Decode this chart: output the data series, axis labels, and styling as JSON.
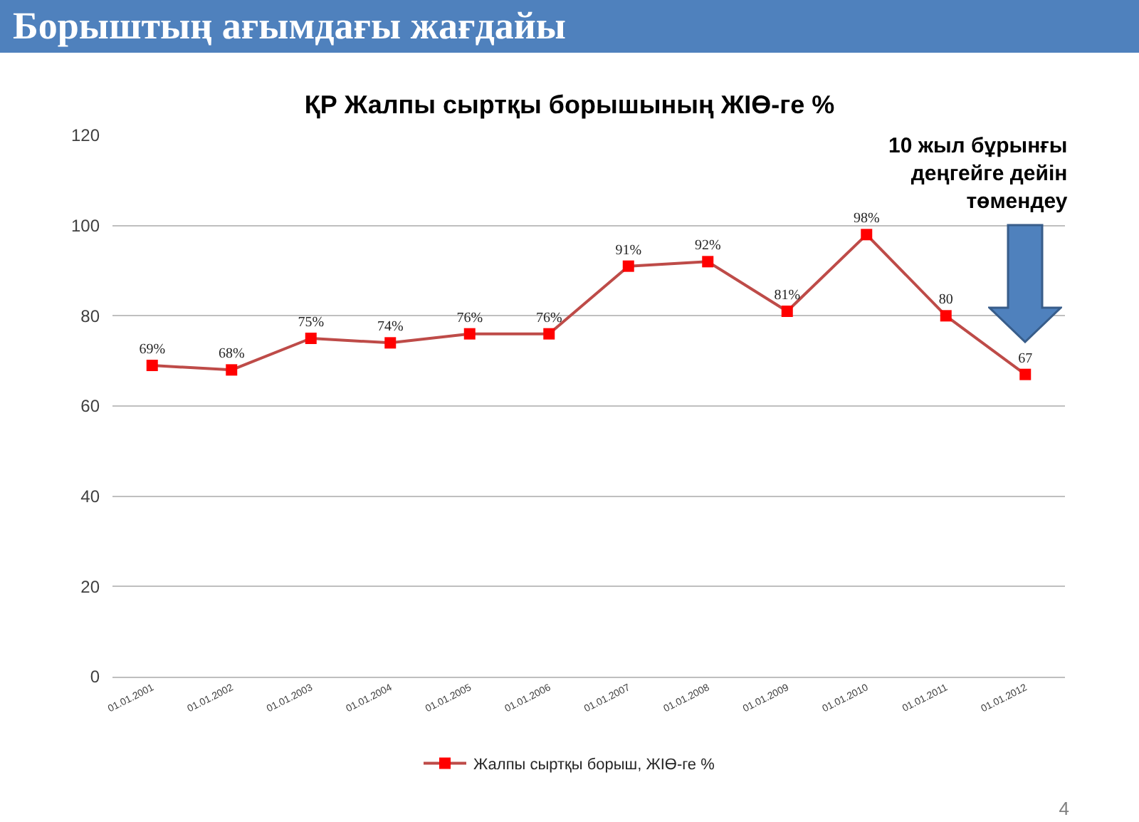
{
  "chart_data": {
    "type": "line",
    "title": "Борыштың ағымдағы жағдайы",
    "subtitle": "ҚР Жалпы сыртқы борышының ЖІӨ-ге %",
    "categories": [
      "01.01.2001",
      "01.01.2002",
      "01.01.2003",
      "01.01.2004",
      "01.01.2005",
      "01.01.2006",
      "01.01.2007",
      "01.01.2008",
      "01.01.2009",
      "01.01.2010",
      "01.01.2011",
      "01.01.2012"
    ],
    "series": [
      {
        "name": "Жалпы сыртқы борыш, ЖІӨ-ге %",
        "color": "#be4b48",
        "colors": [
          "#ff0000",
          "#ff0000",
          "#ff0000",
          "#ff0000",
          "#ff0000",
          "#ff0000",
          "#ff0000",
          "#ff0000",
          "#ff0000",
          "#ff0000",
          "#ff0000",
          "#ff0000"
        ],
        "values": [
          69,
          68,
          75,
          74,
          76,
          76,
          91,
          92,
          81,
          98,
          80,
          67
        ],
        "value_labels": [
          "69%",
          "68%",
          "75%",
          "74%",
          "76%",
          "76%",
          "91%",
          "92%",
          "81%",
          "98%",
          "80",
          "67"
        ]
      }
    ],
    "ylim": [
      0,
      120
    ],
    "yticks": [
      0,
      20,
      40,
      60,
      80,
      100,
      120
    ],
    "grid": "y",
    "legend": "bottom",
    "marker": "square",
    "line_style": "solid",
    "annotations": [
      "10 жыл бұрынғы деңгейге дейін төмендеу",
      "4"
    ]
  }
}
